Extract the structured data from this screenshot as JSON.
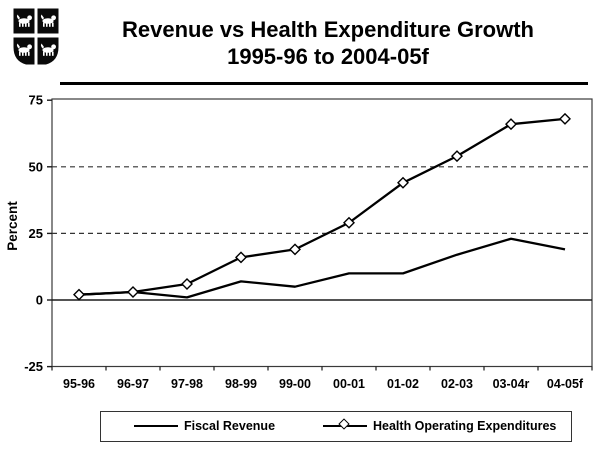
{
  "logo": {
    "name": "coat-of-arms-crest",
    "description": "quartered heraldic shield, four black quadrants each bearing a white lion"
  },
  "title": {
    "line1": "Revenue vs Health Expenditure Growth",
    "line2": "1995-96 to 2004-05f"
  },
  "chart_data": {
    "type": "line",
    "title": "Revenue vs Health Expenditure Growth 1995-96 to 2004-05f",
    "categories": [
      "95-96",
      "96-97",
      "97-98",
      "98-99",
      "99-00",
      "00-01",
      "01-02",
      "02-03",
      "03-04r",
      "04-05f"
    ],
    "series": [
      {
        "name": "Fiscal Revenue",
        "marker": "none",
        "values": [
          2,
          3,
          1,
          7,
          5,
          10,
          10,
          17,
          23,
          19
        ]
      },
      {
        "name": "Health Operating Expenditures",
        "marker": "diamond",
        "values": [
          2,
          3,
          6,
          16,
          19,
          29,
          44,
          54,
          66,
          68
        ]
      }
    ],
    "xlabel": "",
    "ylabel": "Percent",
    "ylim": [
      -25,
      75
    ],
    "yticks": [
      -25,
      0,
      25,
      50,
      75
    ],
    "gridlines": {
      "dashed_at": [
        25,
        50
      ],
      "solid_at": [
        0
      ]
    },
    "legend_position": "bottom",
    "colors": {
      "line": "#000000",
      "marker_fill": "#ffffff",
      "background": "#ffffff",
      "grid": "#333333"
    }
  }
}
